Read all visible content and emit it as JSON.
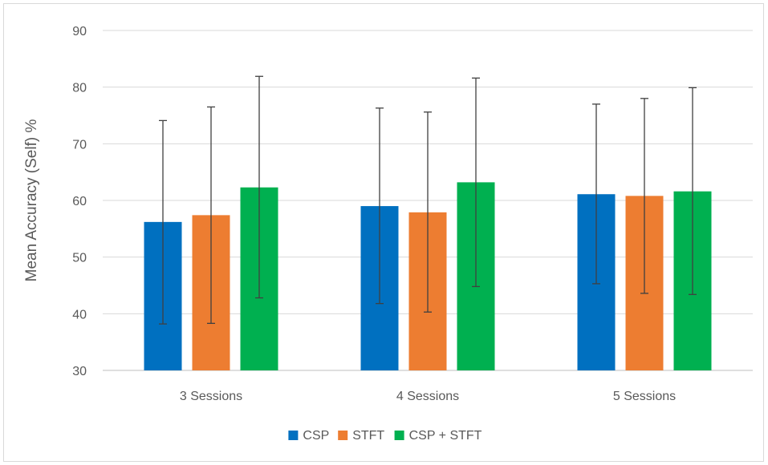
{
  "chart_data": {
    "type": "bar",
    "title": "",
    "xlabel": "",
    "ylabel": "Mean Accuracy (Self) %",
    "ylim": [
      30,
      90
    ],
    "yticks": [
      30,
      40,
      50,
      60,
      70,
      80,
      90
    ],
    "grid": "horizontal",
    "legend": "bottom",
    "categories": [
      "3 Sessions",
      "4 Sessions",
      "5 Sessions"
    ],
    "series": [
      {
        "name": "CSP",
        "color": "#0070c0",
        "values": [
          56.2,
          59.0,
          61.1
        ],
        "error_low": [
          38.2,
          41.8,
          45.3
        ],
        "error_high": [
          74.1,
          76.3,
          77.0
        ]
      },
      {
        "name": "STFT",
        "color": "#ed7d31",
        "values": [
          57.4,
          57.9,
          60.8
        ],
        "error_low": [
          38.3,
          40.3,
          43.6
        ],
        "error_high": [
          76.5,
          75.6,
          78.0
        ]
      },
      {
        "name": "CSP + STFT",
        "color": "#00b050",
        "values": [
          62.3,
          63.2,
          61.6
        ],
        "error_low": [
          42.8,
          44.8,
          43.4
        ],
        "error_high": [
          81.9,
          81.6,
          79.9
        ]
      }
    ]
  }
}
